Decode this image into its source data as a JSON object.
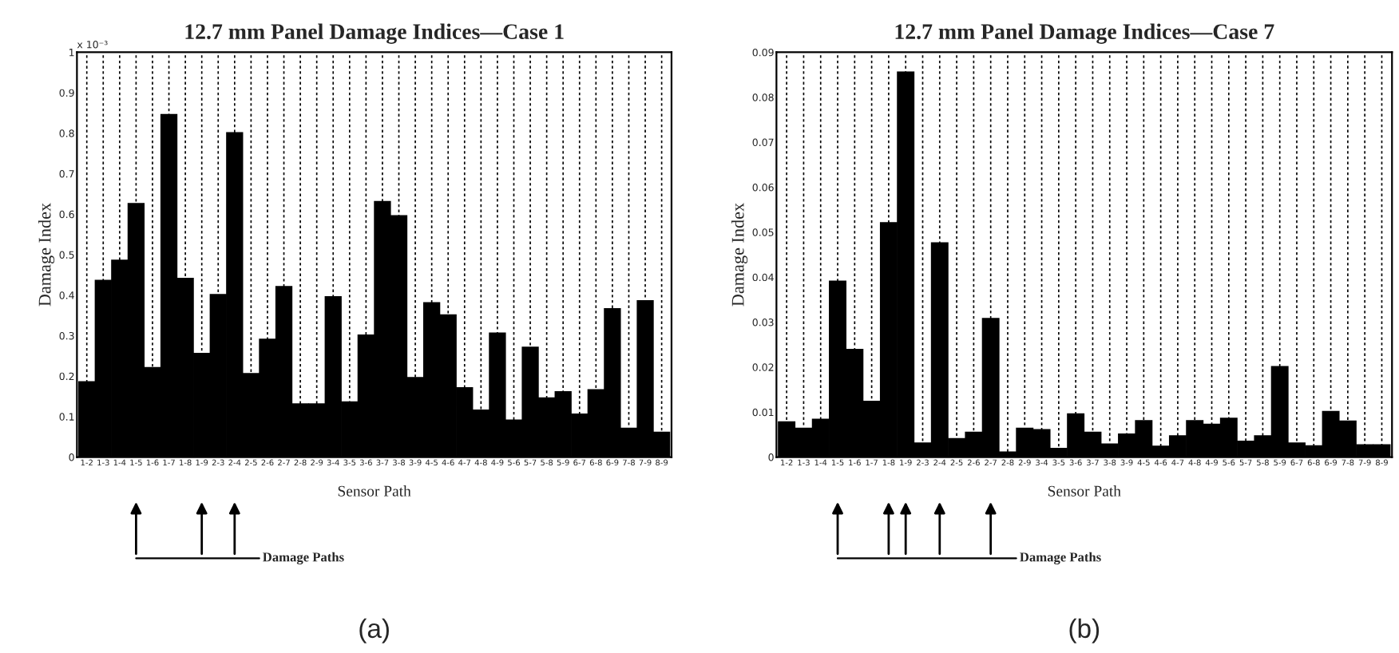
{
  "chart_data": [
    {
      "type": "bar",
      "title": "12.7 mm Panel Damage Indices—Case 1",
      "xlabel": "Sensor Path",
      "ylabel": "Damage Index",
      "categories": [
        "1-2",
        "1-3",
        "1-4",
        "1-5",
        "1-6",
        "1-7",
        "1-8",
        "1-9",
        "2-3",
        "2-4",
        "2-5",
        "2-6",
        "2-7",
        "2-8",
        "2-9",
        "3-4",
        "3-5",
        "3-6",
        "3-7",
        "3-8",
        "3-9",
        "4-5",
        "4-6",
        "4-7",
        "4-8",
        "4-9",
        "5-6",
        "5-7",
        "5-8",
        "5-9",
        "6-7",
        "6-8",
        "6-9",
        "7-8",
        "7-9",
        "8-9"
      ],
      "values": [
        0.185,
        0.435,
        0.485,
        0.625,
        0.22,
        0.845,
        0.44,
        0.255,
        0.4,
        0.8,
        0.205,
        0.29,
        0.42,
        0.13,
        0.13,
        0.395,
        0.135,
        0.3,
        0.63,
        0.595,
        0.195,
        0.38,
        0.35,
        0.17,
        0.115,
        0.305,
        0.09,
        0.27,
        0.145,
        0.16,
        0.105,
        0.165,
        0.365,
        0.07,
        0.385,
        0.06
      ],
      "color": "#000000",
      "ylim": [
        0,
        1
      ],
      "yticks": [
        0,
        0.1,
        0.2,
        0.3,
        0.4,
        0.5,
        0.6,
        0.7,
        0.8,
        0.9,
        1
      ],
      "grid": "x",
      "annotations": [
        "x 10⁻³",
        "Damage Paths",
        "(a)"
      ]
    },
    {
      "type": "bar",
      "title": "12.7 mm Panel Damage Indices—Case 7",
      "xlabel": "Sensor Path",
      "ylabel": "Damage Index",
      "categories": [
        "1-2",
        "1-3",
        "1-4",
        "1-5",
        "1-6",
        "1-7",
        "1-8",
        "1-9",
        "2-3",
        "2-4",
        "2-5",
        "2-6",
        "2-7",
        "2-8",
        "2-9",
        "3-4",
        "3-5",
        "3-6",
        "3-7",
        "3-8",
        "3-9",
        "4-5",
        "4-6",
        "4-7",
        "4-8",
        "4-9",
        "5-6",
        "5-7",
        "5-8",
        "5-9",
        "6-7",
        "6-8",
        "6-9",
        "7-8",
        "7-9",
        "8-9"
      ],
      "values": [
        0.0077,
        0.0063,
        0.0083,
        0.039,
        0.0238,
        0.0123,
        0.052,
        0.0855,
        0.003,
        0.0475,
        0.004,
        0.0054,
        0.0307,
        0.001,
        0.0063,
        0.006,
        0.0018,
        0.0095,
        0.0054,
        0.0028,
        0.005,
        0.008,
        0.0023,
        0.0046,
        0.008,
        0.0072,
        0.0085,
        0.0034,
        0.0046,
        0.02,
        0.003,
        0.0024,
        0.01,
        0.0079,
        0.0026,
        0.0026
      ],
      "color": "#000000",
      "ylim": [
        0,
        0.09
      ],
      "yticks": [
        0,
        0.01,
        0.02,
        0.03,
        0.04,
        0.05,
        0.06,
        0.07,
        0.08,
        0.09
      ],
      "grid": "x",
      "annotations": [
        "Damage Paths",
        "(b)"
      ]
    }
  ]
}
